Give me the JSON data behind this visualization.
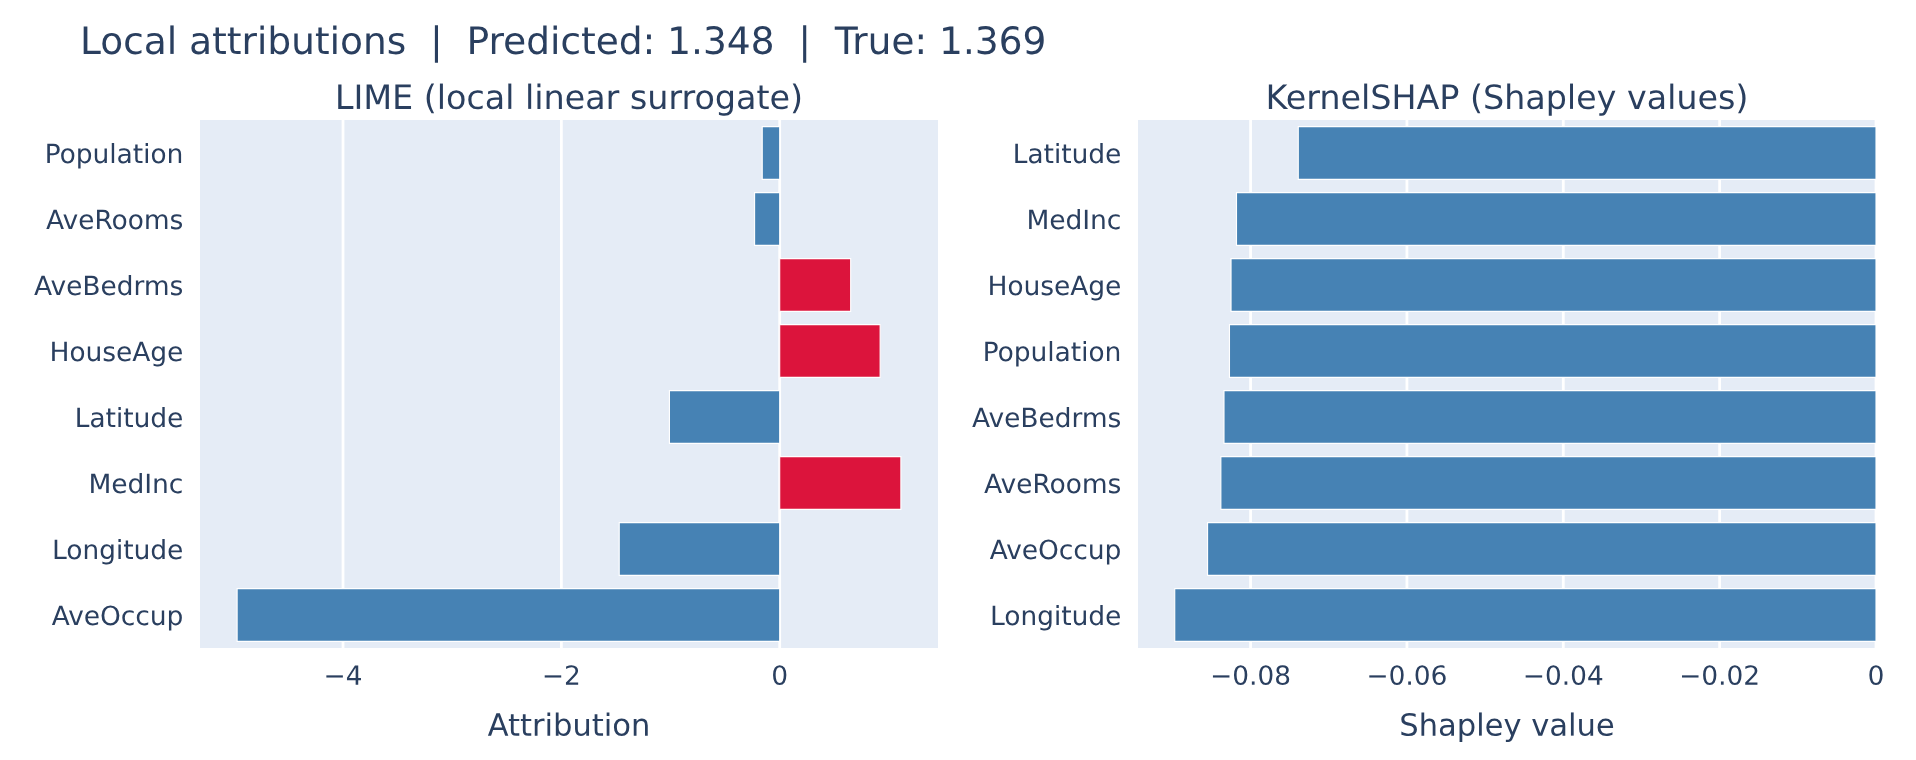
{
  "chart_data": [
    {
      "type": "bar",
      "orientation": "horizontal",
      "title": "Local attributions  |  Predicted: 1.348  |  True: 1.369",
      "subtitle": "LIME (local linear surrogate)",
      "xlabel": "Attribution",
      "categories": [
        "Population",
        "AveRooms",
        "AveBedrms",
        "HouseAge",
        "Latitude",
        "MedInc",
        "Longitude",
        "AveOccup"
      ],
      "values": [
        -0.16,
        -0.23,
        0.65,
        0.92,
        -1.01,
        1.11,
        -1.47,
        -4.97
      ],
      "colors": [
        "#4682b4",
        "#4682b4",
        "#dc143c",
        "#dc143c",
        "#4682b4",
        "#dc143c",
        "#4682b4",
        "#4682b4"
      ],
      "xlim": [
        -5.31,
        1.45
      ],
      "xticks": [
        {
          "value": -4,
          "label": "−4"
        },
        {
          "value": -2,
          "label": "−2"
        },
        0
      ],
      "grid": "x",
      "legend": false
    },
    {
      "type": "bar",
      "orientation": "horizontal",
      "subtitle": "KernelSHAP (Shapley values)",
      "xlabel": "Shapley value",
      "categories": [
        "Latitude",
        "MedInc",
        "HouseAge",
        "Population",
        "AveBedrms",
        "AveRooms",
        "AveOccup",
        "Longitude"
      ],
      "values": [
        -0.0739,
        -0.0818,
        -0.0825,
        -0.0827,
        -0.0834,
        -0.0838,
        -0.0855,
        -0.0897
      ],
      "colors": [
        "#4682b4",
        "#4682b4",
        "#4682b4",
        "#4682b4",
        "#4682b4",
        "#4682b4",
        "#4682b4",
        "#4682b4"
      ],
      "xlim": [
        -0.0944,
        0
      ],
      "xticks": [
        {
          "value": -0.08,
          "label": "−0.08"
        },
        {
          "value": -0.06,
          "label": "−0.06"
        },
        {
          "value": -0.04,
          "label": "−0.04"
        },
        {
          "value": -0.02,
          "label": "−0.02"
        },
        0
      ],
      "grid": "x",
      "legend": false
    }
  ]
}
